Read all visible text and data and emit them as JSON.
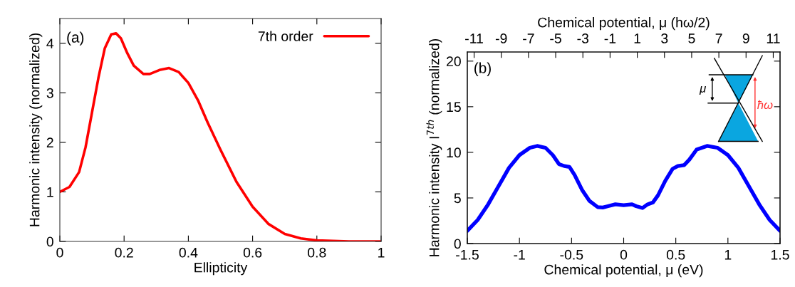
{
  "chart_data": [
    {
      "type": "line",
      "xlabel": "Ellipticity",
      "ylabel": "Harmonic intensity (normalized)",
      "annotations": [
        "(a)"
      ],
      "xlim": [
        0,
        1
      ],
      "xticks": [
        0,
        0.2,
        0.4,
        0.6,
        0.8,
        1
      ],
      "ylim": [
        0,
        4.5
      ],
      "yticks": [
        0,
        1,
        2,
        3,
        4
      ],
      "grid": false,
      "legend": "top right",
      "x": [
        0,
        0.03,
        0.06,
        0.08,
        0.1,
        0.12,
        0.14,
        0.16,
        0.175,
        0.19,
        0.21,
        0.23,
        0.26,
        0.28,
        0.31,
        0.34,
        0.37,
        0.4,
        0.43,
        0.46,
        0.5,
        0.55,
        0.6,
        0.65,
        0.7,
        0.75,
        0.8,
        0.9,
        1.0
      ],
      "series": [
        {
          "name": "7th order",
          "color": "#ff0000",
          "values": [
            1.0,
            1.1,
            1.4,
            1.9,
            2.6,
            3.3,
            3.9,
            4.18,
            4.2,
            4.1,
            3.8,
            3.55,
            3.38,
            3.38,
            3.46,
            3.5,
            3.42,
            3.2,
            2.85,
            2.4,
            1.85,
            1.2,
            0.7,
            0.35,
            0.15,
            0.06,
            0.02,
            0.0,
            0.0
          ]
        }
      ]
    },
    {
      "type": "line",
      "xlabel": "Chemical potential, μ (eV)",
      "x2label": "Chemical potential, μ (hω/2)",
      "ylabel": "Harmonic intensity I$^{7th}$ (normalized)",
      "annotations": [
        "(b)",
        "μ",
        "ħω"
      ],
      "xlim": [
        -1.5,
        1.5
      ],
      "xticks": [
        -1.5,
        -1,
        -0.5,
        0,
        0.5,
        1,
        1.5
      ],
      "x2lim": [
        -11.5,
        11.5
      ],
      "x2ticks": [
        -11,
        -9,
        -7,
        -5,
        -3,
        -1,
        1,
        3,
        5,
        7,
        9,
        11
      ],
      "ylim": [
        0,
        21
      ],
      "yticks": [
        0,
        5,
        10,
        15,
        20
      ],
      "grid": false,
      "x": [
        -1.5,
        -1.4,
        -1.3,
        -1.2,
        -1.1,
        -1.0,
        -0.9,
        -0.83,
        -0.75,
        -0.68,
        -0.62,
        -0.57,
        -0.52,
        -0.47,
        -0.4,
        -0.33,
        -0.25,
        -0.2,
        -0.15,
        -0.08,
        0,
        0.08,
        0.12,
        0.18,
        0.23,
        0.28,
        0.33,
        0.4,
        0.47,
        0.52,
        0.58,
        0.63,
        0.7,
        0.8,
        0.9,
        1.0,
        1.1,
        1.2,
        1.3,
        1.4,
        1.5
      ],
      "series": [
        {
          "color": "#0000ff",
          "values": [
            1.4,
            2.6,
            4.3,
            6.3,
            8.3,
            9.7,
            10.5,
            10.7,
            10.5,
            9.7,
            8.7,
            8.5,
            8.4,
            7.5,
            5.9,
            4.7,
            4.0,
            3.95,
            4.1,
            4.3,
            4.2,
            4.3,
            4.1,
            3.9,
            4.3,
            4.5,
            5.3,
            6.9,
            8.2,
            8.5,
            8.6,
            9.2,
            10.3,
            10.7,
            10.5,
            9.7,
            8.3,
            6.3,
            4.3,
            2.6,
            1.4
          ]
        }
      ]
    }
  ]
}
